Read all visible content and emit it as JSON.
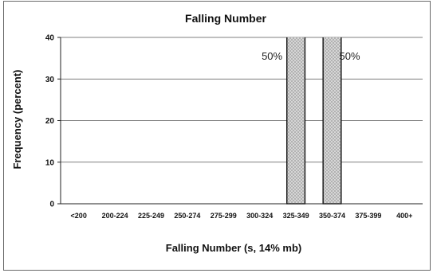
{
  "chart_data": {
    "type": "bar",
    "title": "Falling Number",
    "xlabel": "Falling Number (s, 14% mb)",
    "ylabel": "Frequency (percent)",
    "ylim": [
      0,
      40
    ],
    "yticks": [
      0,
      10,
      20,
      30,
      40
    ],
    "grid": true,
    "categories": [
      "<200",
      "200-224",
      "225-249",
      "250-274",
      "275-299",
      "300-324",
      "325-349",
      "350-374",
      "375-399",
      "400+"
    ],
    "values": [
      0,
      0,
      0,
      0,
      0,
      0,
      50,
      50,
      0,
      0
    ],
    "data_labels": [
      "",
      "",
      "",
      "",
      "",
      "",
      "50%",
      "50%",
      "",
      ""
    ],
    "bar_fill": "#d6d6d6",
    "bar_edge": "#111111"
  }
}
